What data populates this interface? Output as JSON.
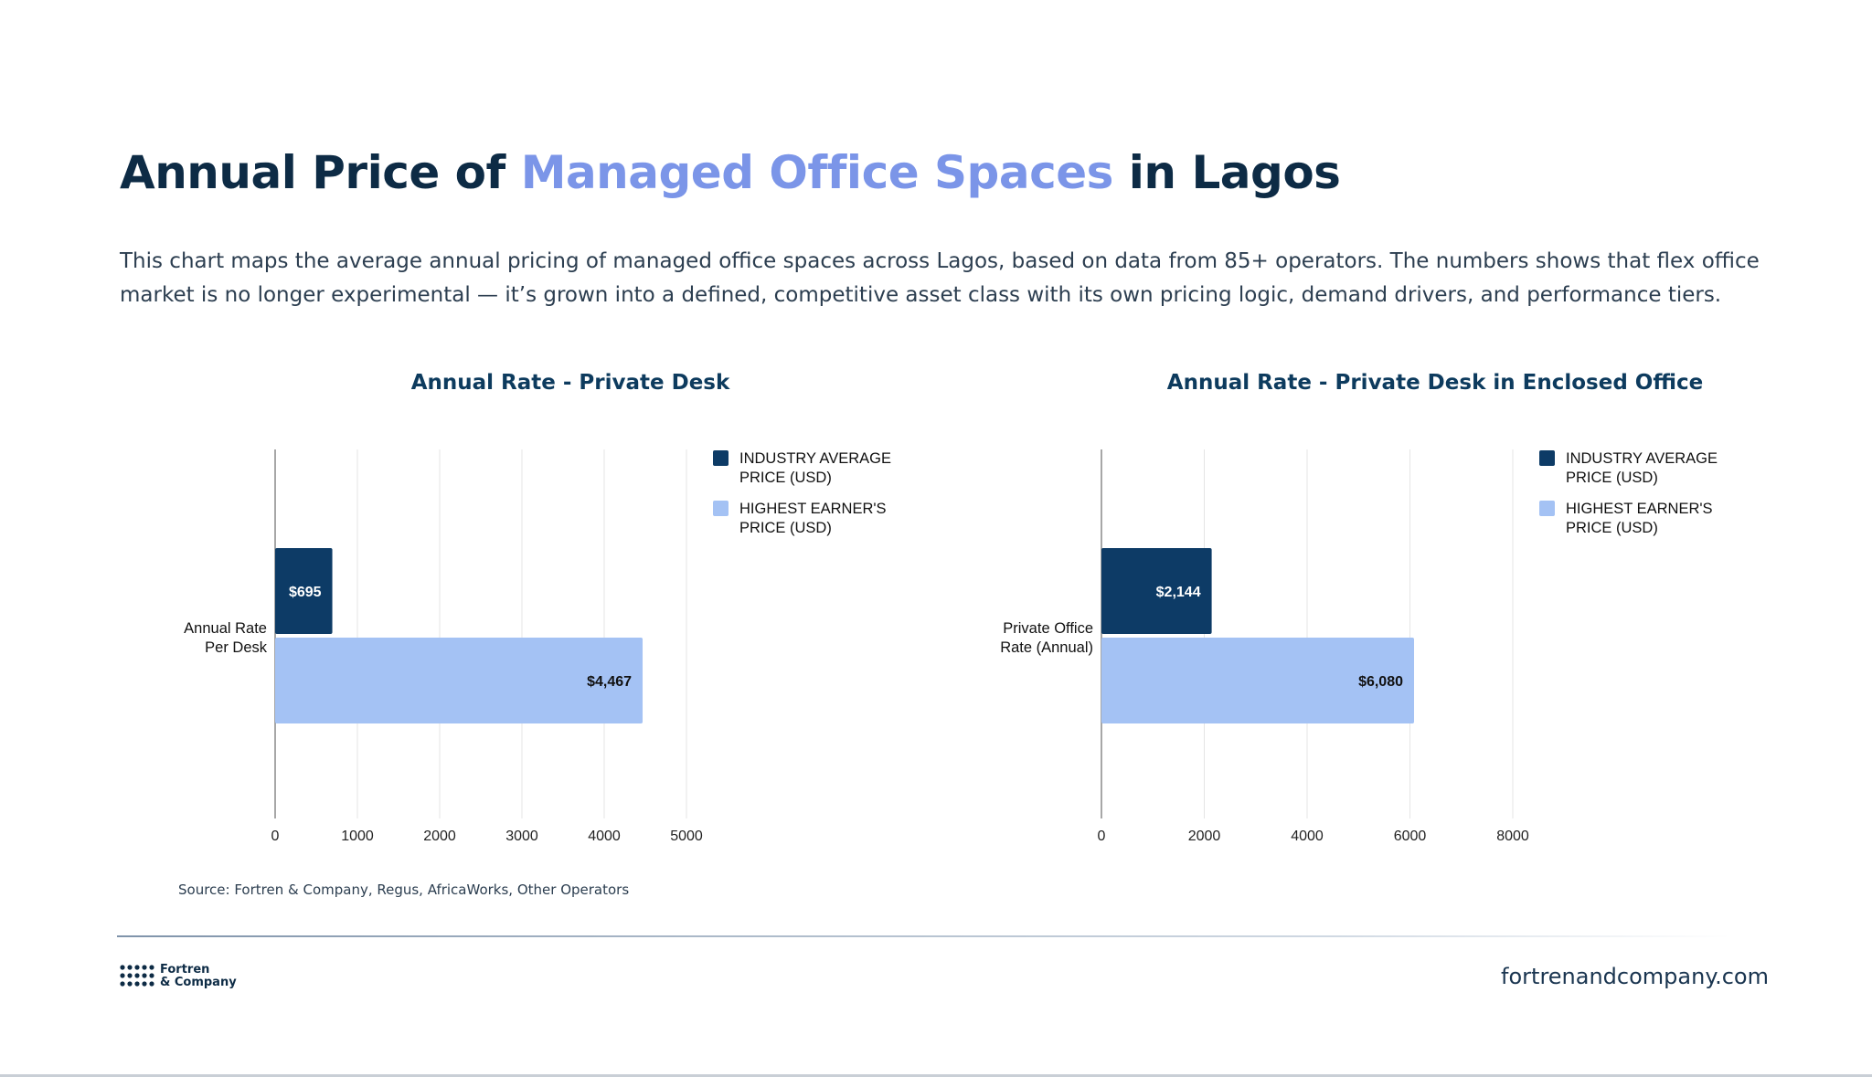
{
  "header": {
    "title_part1": "Annual Price of ",
    "title_accent": "Managed Office Spaces",
    "title_part2": " in Lagos",
    "description": "This chart maps the average annual pricing of managed office spaces across Lagos, based on data from 85+ operators. The numbers shows that flex office market is no longer experimental — it’s grown into a defined, competitive asset class with its own pricing logic, demand drivers, and performance tiers."
  },
  "colors": {
    "title": "#0d2b45",
    "accent": "#7b95e8",
    "industry_average": "#0d3b66",
    "highest_earner": "#a4c2f4",
    "grid": "#e5e5e5",
    "axis": "#8a8a8a"
  },
  "chart_data": [
    {
      "type": "bar",
      "orientation": "horizontal",
      "title": "Annual Rate - Private Desk",
      "categories": [
        "Annual Rate Per Desk"
      ],
      "category_lines": [
        "Annual Rate",
        "Per Desk"
      ],
      "series": [
        {
          "name": "INDUSTRY AVERAGE PRICE (USD)",
          "name_lines": [
            "INDUSTRY AVERAGE",
            "PRICE (USD)"
          ],
          "values": [
            695
          ],
          "labels": [
            "$695"
          ],
          "color": "#0d3b66",
          "label_color": "#ffffff"
        },
        {
          "name": "HIGHEST EARNER'S PRICE (USD)",
          "name_lines": [
            "HIGHEST EARNER'S",
            "PRICE (USD)"
          ],
          "values": [
            4467
          ],
          "labels": [
            "$4,467"
          ],
          "color": "#a4c2f4",
          "label_color": "#111111"
        }
      ],
      "xlim": [
        0,
        5000
      ],
      "xticks": [
        0,
        1000,
        2000,
        3000,
        4000,
        5000
      ],
      "grid": true,
      "legend": "top-right",
      "xlabel": "",
      "ylabel": ""
    },
    {
      "type": "bar",
      "orientation": "horizontal",
      "title": "Annual Rate - Private Desk in Enclosed Office",
      "categories": [
        "Private Office Rate (Annual)"
      ],
      "category_lines": [
        "Private Office",
        "Rate (Annual)"
      ],
      "series": [
        {
          "name": "INDUSTRY AVERAGE PRICE (USD)",
          "name_lines": [
            "INDUSTRY AVERAGE",
            "PRICE (USD)"
          ],
          "values": [
            2144
          ],
          "labels": [
            "$2,144"
          ],
          "color": "#0d3b66",
          "label_color": "#ffffff"
        },
        {
          "name": "HIGHEST EARNER'S PRICE (USD)",
          "name_lines": [
            "HIGHEST EARNER'S",
            "PRICE (USD)"
          ],
          "values": [
            6080
          ],
          "labels": [
            "$6,080"
          ],
          "color": "#a4c2f4",
          "label_color": "#111111"
        }
      ],
      "xlim": [
        0,
        8000
      ],
      "xticks": [
        0,
        2000,
        4000,
        6000,
        8000
      ],
      "grid": true,
      "legend": "top-right",
      "xlabel": "",
      "ylabel": ""
    }
  ],
  "footer": {
    "source": "Source: Fortren & Company, Regus, AfricaWorks, Other Operators",
    "logo_line1": "Fortren",
    "logo_line2": "& Company",
    "website": "fortrenandcompany.com"
  }
}
